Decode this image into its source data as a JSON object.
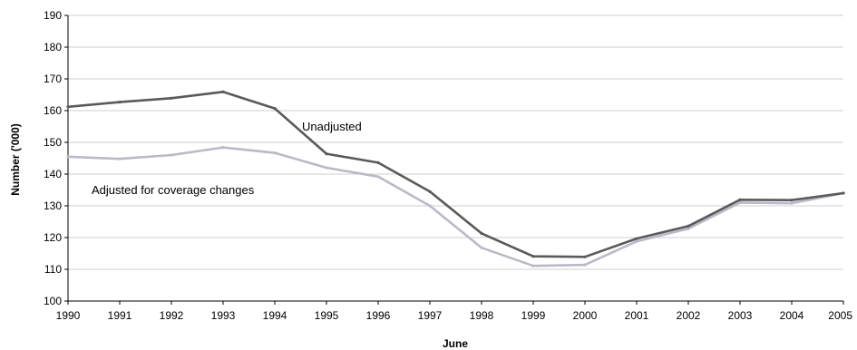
{
  "chart_data": {
    "type": "line",
    "title": "",
    "xlabel": "June",
    "ylabel": "Number ('000)",
    "x": [
      "1990",
      "1991",
      "1992",
      "1993",
      "1994",
      "1995",
      "1996",
      "1997",
      "1998",
      "1999",
      "2000",
      "2001",
      "2002",
      "2003",
      "2004",
      "2005"
    ],
    "ylim": [
      100,
      190
    ],
    "yticks": [
      100,
      110,
      120,
      130,
      140,
      150,
      160,
      170,
      180,
      190
    ],
    "grid": true,
    "series": [
      {
        "name": "Unadjusted",
        "color": "#5a5a5a",
        "values": [
          161.2,
          162.7,
          163.9,
          165.9,
          160.7,
          146.4,
          143.6,
          134.5,
          121.3,
          114.1,
          113.9,
          119.7,
          123.6,
          131.9,
          131.8,
          134.0
        ]
      },
      {
        "name": "Adjusted for coverage changes",
        "color": "#bdb8c8",
        "values": [
          145.5,
          144.8,
          146.0,
          148.4,
          146.7,
          142.0,
          139.2,
          130.0,
          116.8,
          111.1,
          111.4,
          118.8,
          122.8,
          131.0,
          130.8,
          134.0
        ]
      }
    ]
  }
}
